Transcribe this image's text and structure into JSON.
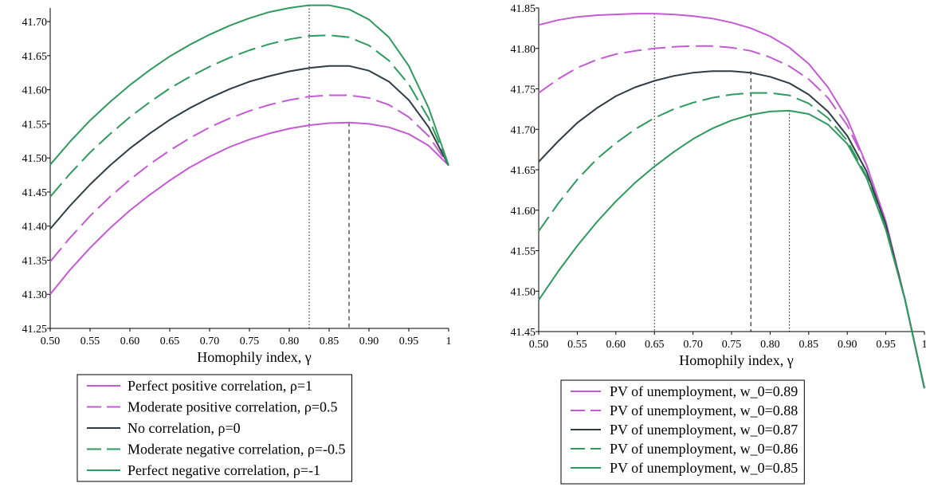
{
  "chart_data": [
    {
      "type": "line",
      "xlabel": "Homophily index, γ",
      "ylabel": "",
      "xlim": [
        0.5,
        1.0
      ],
      "ylim": [
        41.25,
        41.72
      ],
      "yticks": [
        "41.25",
        "41.30",
        "41.35",
        "41.40",
        "41.45",
        "41.50",
        "41.55",
        "41.60",
        "41.65",
        "41.70"
      ],
      "xticks": [
        "0.50",
        "0.55",
        "0.60",
        "0.65",
        "0.70",
        "0.75",
        "0.80",
        "0.85",
        "0.90",
        "0.95",
        "1"
      ],
      "x": [
        0.5,
        0.525,
        0.55,
        0.575,
        0.6,
        0.625,
        0.65,
        0.675,
        0.7,
        0.725,
        0.75,
        0.775,
        0.8,
        0.825,
        0.85,
        0.875,
        0.9,
        0.925,
        0.95,
        0.975,
        1.0
      ],
      "series": [
        {
          "name": "Perfect positive correlation, ρ=1",
          "color": "#c45ad4",
          "dash": "solid",
          "values": [
            41.3,
            41.336,
            41.368,
            41.397,
            41.423,
            41.446,
            41.467,
            41.486,
            41.502,
            41.516,
            41.527,
            41.536,
            41.543,
            41.548,
            41.551,
            41.552,
            41.55,
            41.545,
            41.535,
            41.518,
            41.489
          ]
        },
        {
          "name": "Moderate positive correlation, ρ=0.5",
          "color": "#c45ad4",
          "dash": "dash",
          "values": [
            41.348,
            41.383,
            41.415,
            41.443,
            41.468,
            41.491,
            41.511,
            41.529,
            41.545,
            41.558,
            41.569,
            41.578,
            41.585,
            41.59,
            41.592,
            41.592,
            41.588,
            41.578,
            41.56,
            41.532,
            41.489
          ]
        },
        {
          "name": "No correlation, ρ=0",
          "color": "#2e3d45",
          "dash": "solid",
          "values": [
            41.396,
            41.43,
            41.461,
            41.489,
            41.514,
            41.536,
            41.556,
            41.573,
            41.588,
            41.601,
            41.612,
            41.62,
            41.627,
            41.632,
            41.635,
            41.635,
            41.628,
            41.612,
            41.585,
            41.545,
            41.489
          ]
        },
        {
          "name": "Moderate negative correlation, ρ=-0.5",
          "color": "#2e9a5e",
          "dash": "dash",
          "values": [
            41.443,
            41.477,
            41.508,
            41.535,
            41.56,
            41.582,
            41.602,
            41.619,
            41.634,
            41.647,
            41.658,
            41.667,
            41.674,
            41.679,
            41.68,
            41.677,
            41.665,
            41.643,
            41.608,
            41.558,
            41.489
          ]
        },
        {
          "name": "Perfect negative correlation, ρ=-1",
          "color": "#2e9a5e",
          "dash": "solid",
          "values": [
            41.49,
            41.524,
            41.555,
            41.582,
            41.607,
            41.629,
            41.649,
            41.666,
            41.681,
            41.694,
            41.705,
            41.714,
            41.72,
            41.724,
            41.724,
            41.718,
            41.703,
            41.677,
            41.635,
            41.573,
            41.489
          ]
        }
      ],
      "vlines": [
        {
          "x": 0.825,
          "style": "dotted",
          "y_top": 41.724
        },
        {
          "x": 0.875,
          "style": "dashed",
          "y_top": 41.552
        }
      ],
      "legend_placement": "below"
    },
    {
      "type": "line",
      "xlabel": "Homophily index, γ",
      "ylabel": "",
      "xlim": [
        0.5,
        1.0
      ],
      "ylim": [
        41.45,
        41.85
      ],
      "yticks": [
        "41.45",
        "41.50",
        "41.55",
        "41.60",
        "41.65",
        "41.70",
        "41.75",
        "41.80",
        "41.85"
      ],
      "xticks": [
        "0.50",
        "0.55",
        "0.60",
        "0.65",
        "0.70",
        "0.75",
        "0.80",
        "0.85",
        "0.90",
        "0.95",
        "1"
      ],
      "x": [
        0.5,
        0.525,
        0.55,
        0.575,
        0.6,
        0.625,
        0.65,
        0.675,
        0.7,
        0.725,
        0.75,
        0.775,
        0.8,
        0.825,
        0.85,
        0.875,
        0.9,
        0.925,
        0.95,
        0.975,
        1.0
      ],
      "series": [
        {
          "name": "PV of unemployment, w_0=0.89",
          "color": "#c45ad4",
          "dash": "solid",
          "values": [
            41.829,
            41.835,
            41.839,
            41.841,
            41.842,
            41.843,
            41.843,
            41.842,
            41.84,
            41.837,
            41.832,
            41.825,
            41.815,
            41.801,
            41.781,
            41.752,
            41.713,
            41.656,
            41.586,
            41.489,
            41.38
          ]
        },
        {
          "name": "PV of unemployment, w_0=0.88",
          "color": "#c45ad4",
          "dash": "dash",
          "values": [
            41.745,
            41.762,
            41.776,
            41.786,
            41.793,
            41.797,
            41.8,
            41.802,
            41.803,
            41.803,
            41.801,
            41.797,
            41.789,
            41.778,
            41.762,
            41.739,
            41.705,
            41.656,
            41.586,
            41.489,
            41.38
          ]
        },
        {
          "name": "PV of unemployment, w_0=0.87",
          "color": "#2e3d45",
          "dash": "solid",
          "values": [
            41.66,
            41.685,
            41.708,
            41.726,
            41.741,
            41.752,
            41.76,
            41.766,
            41.77,
            41.772,
            41.772,
            41.77,
            41.765,
            41.757,
            41.743,
            41.722,
            41.692,
            41.648,
            41.582,
            41.489,
            41.38
          ]
        },
        {
          "name": "PV of unemployment, w_0=0.86",
          "color": "#2e9a5e",
          "dash": "dash",
          "values": [
            41.574,
            41.608,
            41.638,
            41.663,
            41.683,
            41.7,
            41.714,
            41.725,
            41.733,
            41.739,
            41.743,
            41.745,
            41.745,
            41.742,
            41.732,
            41.714,
            41.686,
            41.642,
            41.578,
            41.489,
            41.38
          ]
        },
        {
          "name": "PV of unemployment, w_0=0.85",
          "color": "#2e9a5e",
          "dash": "solid",
          "values": [
            41.489,
            41.524,
            41.556,
            41.585,
            41.611,
            41.634,
            41.654,
            41.672,
            41.688,
            41.701,
            41.711,
            41.718,
            41.722,
            41.723,
            41.719,
            41.706,
            41.682,
            41.64,
            41.576,
            41.489,
            41.38
          ]
        }
      ],
      "vlines": [
        {
          "x": 0.65,
          "style": "dotted",
          "y_top": 41.843
        },
        {
          "x": 0.775,
          "style": "dashed",
          "y_top": 41.772
        },
        {
          "x": 0.825,
          "style": "dotted",
          "y_top": 41.723
        }
      ],
      "legend_placement": "below"
    }
  ]
}
